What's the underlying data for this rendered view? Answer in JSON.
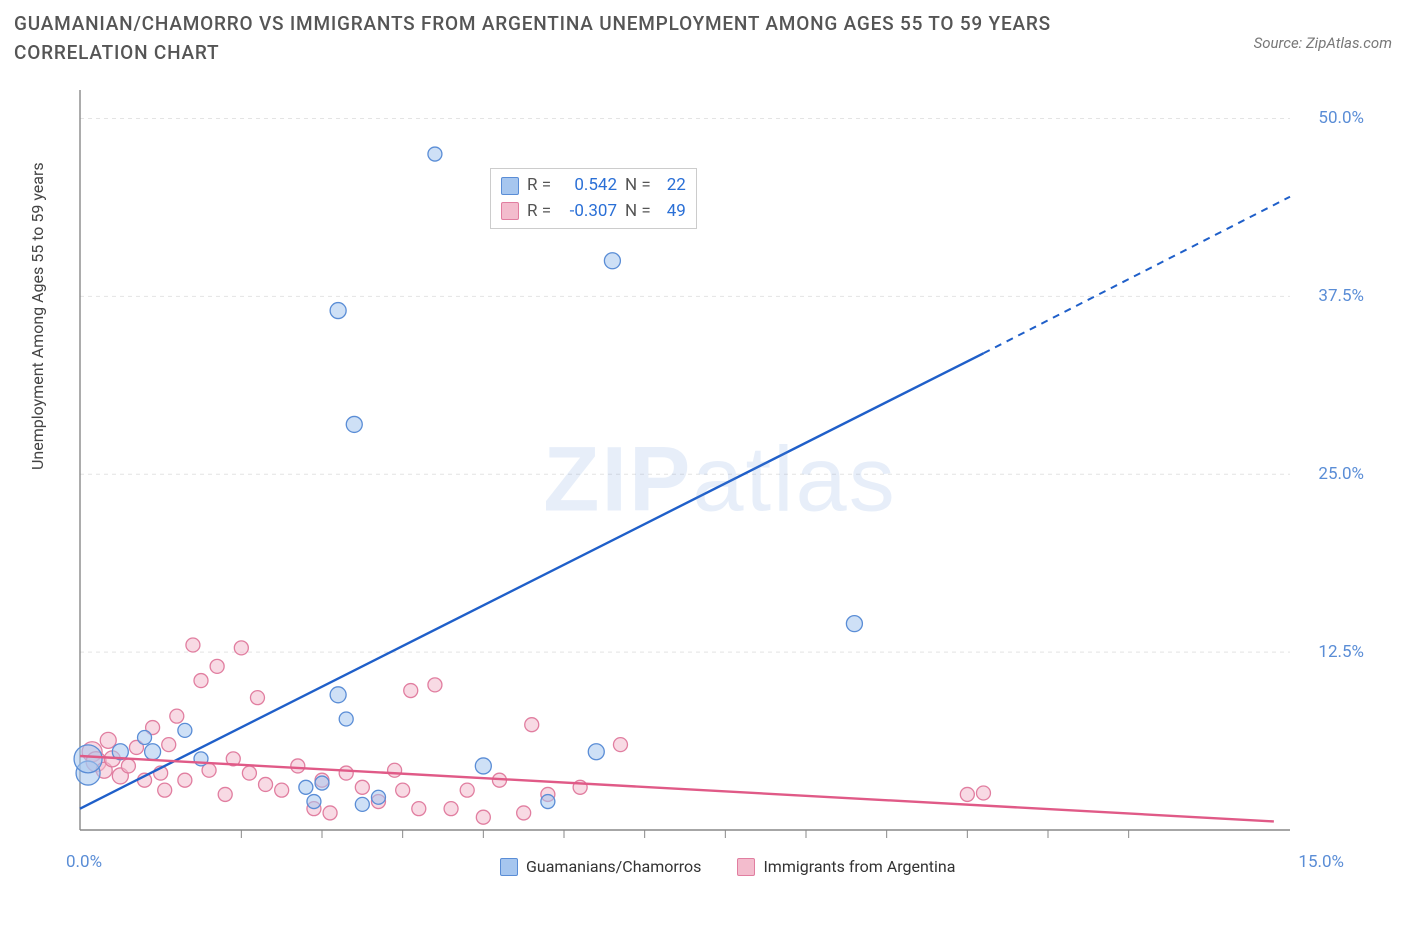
{
  "title": "GUAMANIAN/CHAMORRO VS IMMIGRANTS FROM ARGENTINA UNEMPLOYMENT AMONG AGES 55 TO 59 YEARS CORRELATION CHART",
  "source": "Source: ZipAtlas.com",
  "ylabel": "Unemployment Among Ages 55 to 59 years",
  "watermark_bold": "ZIP",
  "watermark_light": "atlas",
  "chart": {
    "type": "scatter-correlation",
    "xlim": [
      0,
      15
    ],
    "ylim": [
      0,
      52
    ],
    "yticks": [
      12.5,
      25.0,
      37.5,
      50.0
    ],
    "ytick_labels": [
      "12.5%",
      "25.0%",
      "37.5%",
      "50.0%"
    ],
    "xtick_left": "0.0%",
    "xtick_right": "15.0%",
    "xminors": [
      2,
      3,
      4,
      5,
      6,
      7,
      8,
      9,
      10,
      11,
      12,
      13
    ],
    "grid_color": "#e4e4e4",
    "axis_color": "#888888",
    "tick_label_color": "#5a8dd6",
    "background_color": "#ffffff",
    "series": {
      "a": {
        "label": "Guamanians/Chamorros",
        "fill": "#a6c6ef",
        "stroke": "#5a8dd6",
        "line_color": "#1f5fc9",
        "R": "0.542",
        "N": "22",
        "regression": {
          "x1": 0,
          "y1": 1.5,
          "x2": 11.2,
          "y2": 33.5,
          "x2ext": 15,
          "y2ext": 44.5
        },
        "points": [
          {
            "x": 0.1,
            "y": 4.0,
            "r": 12
          },
          {
            "x": 0.1,
            "y": 5.0,
            "r": 14
          },
          {
            "x": 0.5,
            "y": 5.5,
            "r": 8
          },
          {
            "x": 0.9,
            "y": 5.5,
            "r": 8
          },
          {
            "x": 1.3,
            "y": 7.0,
            "r": 7
          },
          {
            "x": 1.5,
            "y": 5.0,
            "r": 7
          },
          {
            "x": 2.8,
            "y": 3.0,
            "r": 7
          },
          {
            "x": 2.9,
            "y": 2.0,
            "r": 7
          },
          {
            "x": 3.0,
            "y": 3.3,
            "r": 7
          },
          {
            "x": 3.2,
            "y": 9.5,
            "r": 8
          },
          {
            "x": 3.3,
            "y": 7.8,
            "r": 7
          },
          {
            "x": 3.5,
            "y": 1.8,
            "r": 7
          },
          {
            "x": 3.2,
            "y": 36.5,
            "r": 8
          },
          {
            "x": 3.4,
            "y": 28.5,
            "r": 8
          },
          {
            "x": 4.4,
            "y": 47.5,
            "r": 7
          },
          {
            "x": 5.0,
            "y": 4.5,
            "r": 8
          },
          {
            "x": 5.8,
            "y": 2.0,
            "r": 7
          },
          {
            "x": 6.4,
            "y": 5.5,
            "r": 8
          },
          {
            "x": 6.6,
            "y": 40.0,
            "r": 8
          },
          {
            "x": 9.6,
            "y": 14.5,
            "r": 8
          },
          {
            "x": 0.8,
            "y": 6.5,
            "r": 7
          },
          {
            "x": 3.7,
            "y": 2.3,
            "r": 7
          }
        ]
      },
      "b": {
        "label": "Immigrants from Argentina",
        "fill": "#f3bccd",
        "stroke": "#e17ea0",
        "line_color": "#e05a87",
        "R": "-0.307",
        "N": "49",
        "regression": {
          "x1": 0,
          "y1": 5.2,
          "x2": 14.8,
          "y2": 0.6
        },
        "points": [
          {
            "x": 0.15,
            "y": 5.5,
            "r": 10
          },
          {
            "x": 0.2,
            "y": 4.8,
            "r": 10
          },
          {
            "x": 0.3,
            "y": 4.2,
            "r": 8
          },
          {
            "x": 0.4,
            "y": 5.0,
            "r": 8
          },
          {
            "x": 0.5,
            "y": 3.8,
            "r": 8
          },
          {
            "x": 0.6,
            "y": 4.5,
            "r": 7
          },
          {
            "x": 0.7,
            "y": 5.8,
            "r": 7
          },
          {
            "x": 0.8,
            "y": 3.5,
            "r": 7
          },
          {
            "x": 0.9,
            "y": 7.2,
            "r": 7
          },
          {
            "x": 1.0,
            "y": 4.0,
            "r": 7
          },
          {
            "x": 1.1,
            "y": 6.0,
            "r": 7
          },
          {
            "x": 1.2,
            "y": 8.0,
            "r": 7
          },
          {
            "x": 1.3,
            "y": 3.5,
            "r": 7
          },
          {
            "x": 1.4,
            "y": 13.0,
            "r": 7
          },
          {
            "x": 1.5,
            "y": 10.5,
            "r": 7
          },
          {
            "x": 1.6,
            "y": 4.2,
            "r": 7
          },
          {
            "x": 1.7,
            "y": 11.5,
            "r": 7
          },
          {
            "x": 1.8,
            "y": 2.5,
            "r": 7
          },
          {
            "x": 1.9,
            "y": 5.0,
            "r": 7
          },
          {
            "x": 2.0,
            "y": 12.8,
            "r": 7
          },
          {
            "x": 2.1,
            "y": 4.0,
            "r": 7
          },
          {
            "x": 2.2,
            "y": 9.3,
            "r": 7
          },
          {
            "x": 2.3,
            "y": 3.2,
            "r": 7
          },
          {
            "x": 2.5,
            "y": 2.8,
            "r": 7
          },
          {
            "x": 2.7,
            "y": 4.5,
            "r": 7
          },
          {
            "x": 2.9,
            "y": 1.5,
            "r": 7
          },
          {
            "x": 3.0,
            "y": 3.5,
            "r": 7
          },
          {
            "x": 3.1,
            "y": 1.2,
            "r": 7
          },
          {
            "x": 3.3,
            "y": 4.0,
            "r": 7
          },
          {
            "x": 3.5,
            "y": 3.0,
            "r": 7
          },
          {
            "x": 3.7,
            "y": 2.0,
            "r": 7
          },
          {
            "x": 3.9,
            "y": 4.2,
            "r": 7
          },
          {
            "x": 4.0,
            "y": 2.8,
            "r": 7
          },
          {
            "x": 4.1,
            "y": 9.8,
            "r": 7
          },
          {
            "x": 4.2,
            "y": 1.5,
            "r": 7
          },
          {
            "x": 4.4,
            "y": 10.2,
            "r": 7
          },
          {
            "x": 4.6,
            "y": 1.5,
            "r": 7
          },
          {
            "x": 4.8,
            "y": 2.8,
            "r": 7
          },
          {
            "x": 5.0,
            "y": 0.9,
            "r": 7
          },
          {
            "x": 5.2,
            "y": 3.5,
            "r": 7
          },
          {
            "x": 5.5,
            "y": 1.2,
            "r": 7
          },
          {
            "x": 5.6,
            "y": 7.4,
            "r": 7
          },
          {
            "x": 5.8,
            "y": 2.5,
            "r": 7
          },
          {
            "x": 6.2,
            "y": 3.0,
            "r": 7
          },
          {
            "x": 6.7,
            "y": 6.0,
            "r": 7
          },
          {
            "x": 11.0,
            "y": 2.5,
            "r": 7
          },
          {
            "x": 11.2,
            "y": 2.6,
            "r": 7
          },
          {
            "x": 0.35,
            "y": 6.3,
            "r": 8
          },
          {
            "x": 1.05,
            "y": 2.8,
            "r": 7
          }
        ]
      }
    },
    "stats_labels": {
      "R": "R =",
      "N": "N ="
    },
    "legend_labels": {
      "a": "Guamanians/Chamorros",
      "b": "Immigrants from Argentina"
    }
  }
}
